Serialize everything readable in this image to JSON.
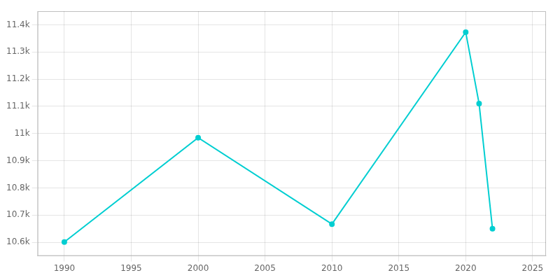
{
  "chart_data": {
    "type": "line",
    "x": [
      1990,
      2000,
      2010,
      2020,
      2021,
      2022
    ],
    "values": [
      10601,
      10985,
      10667,
      11373,
      11110,
      10650
    ],
    "color": "#00CED1",
    "marker": "circle",
    "xlim": [
      1988,
      2026
    ],
    "xticks": [
      1990,
      1995,
      2000,
      2005,
      2010,
      2015,
      2020,
      2025
    ],
    "ylim": [
      10550,
      11450
    ],
    "yticks": [
      {
        "value": 10600,
        "label": "10.6k"
      },
      {
        "value": 10700,
        "label": "10.7k"
      },
      {
        "value": 10800,
        "label": "10.8k"
      },
      {
        "value": 10900,
        "label": "10.9k"
      },
      {
        "value": 11000,
        "label": "11k"
      },
      {
        "value": 11100,
        "label": "11.1k"
      },
      {
        "value": 11200,
        "label": "11.2k"
      },
      {
        "value": 11300,
        "label": "11.3k"
      },
      {
        "value": 11400,
        "label": "11.4k"
      }
    ],
    "grid": true
  }
}
